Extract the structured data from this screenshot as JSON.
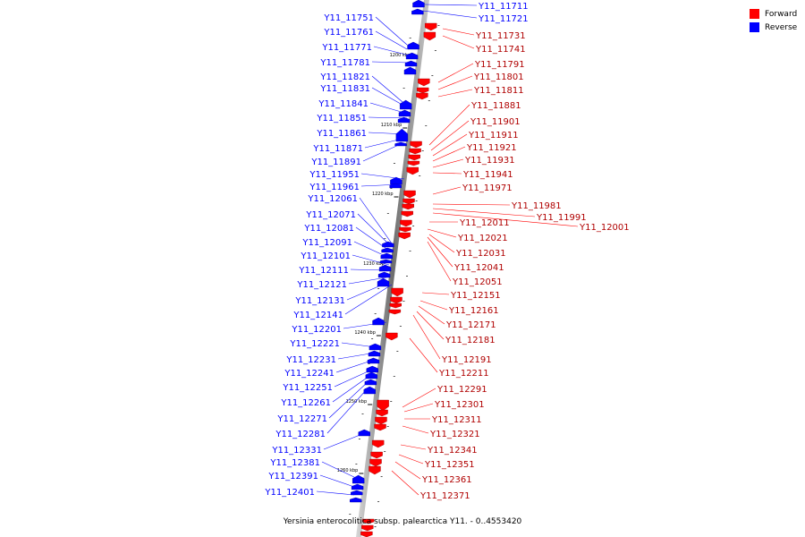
{
  "legend": {
    "forward": {
      "label": "Forward",
      "color": "#ff0000"
    },
    "reverse": {
      "label": "Reverse",
      "color": "#0000ff"
    }
  },
  "caption": "Yersinia enterocolitica subsp. palearctica Y11. - 0..4553420",
  "ticks": [
    "1200 kbp",
    "1210 kbp",
    "1220 kbp",
    "1230 kbp",
    "1240 kbp",
    "1250 kbp",
    "1260 kbp"
  ],
  "reverse_genes": [
    "Y11_11711",
    "Y11_11721",
    "Y11_11751",
    "Y11_11761",
    "Y11_11771",
    "Y11_11781",
    "Y11_11821",
    "Y11_11831",
    "Y11_11841",
    "Y11_11851",
    "Y11_11861",
    "Y11_11871",
    "Y11_11891",
    "Y11_11951",
    "Y11_11961",
    "Y11_12061",
    "Y11_12071",
    "Y11_12081",
    "Y11_12091",
    "Y11_12101",
    "Y11_12111",
    "Y11_12121",
    "Y11_12131",
    "Y11_12141",
    "Y11_12201",
    "Y11_12221",
    "Y11_12231",
    "Y11_12241",
    "Y11_12251",
    "Y11_12261",
    "Y11_12271",
    "Y11_12281",
    "Y11_12331",
    "Y11_12381",
    "Y11_12391",
    "Y11_12401"
  ],
  "forward_genes": [
    "Y11_11731",
    "Y11_11741",
    "Y11_11791",
    "Y11_11801",
    "Y11_11811",
    "Y11_11881",
    "Y11_11901",
    "Y11_11911",
    "Y11_11921",
    "Y11_11931",
    "Y11_11941",
    "Y11_11971",
    "Y11_11981",
    "Y11_11991",
    "Y11_12001",
    "Y11_12011",
    "Y11_12021",
    "Y11_12031",
    "Y11_12041",
    "Y11_12051",
    "Y11_12151",
    "Y11_12161",
    "Y11_12171",
    "Y11_12181",
    "Y11_12191",
    "Y11_12211",
    "Y11_12291",
    "Y11_12301",
    "Y11_12311",
    "Y11_12321",
    "Y11_12341",
    "Y11_12351",
    "Y11_12361",
    "Y11_12371"
  ]
}
